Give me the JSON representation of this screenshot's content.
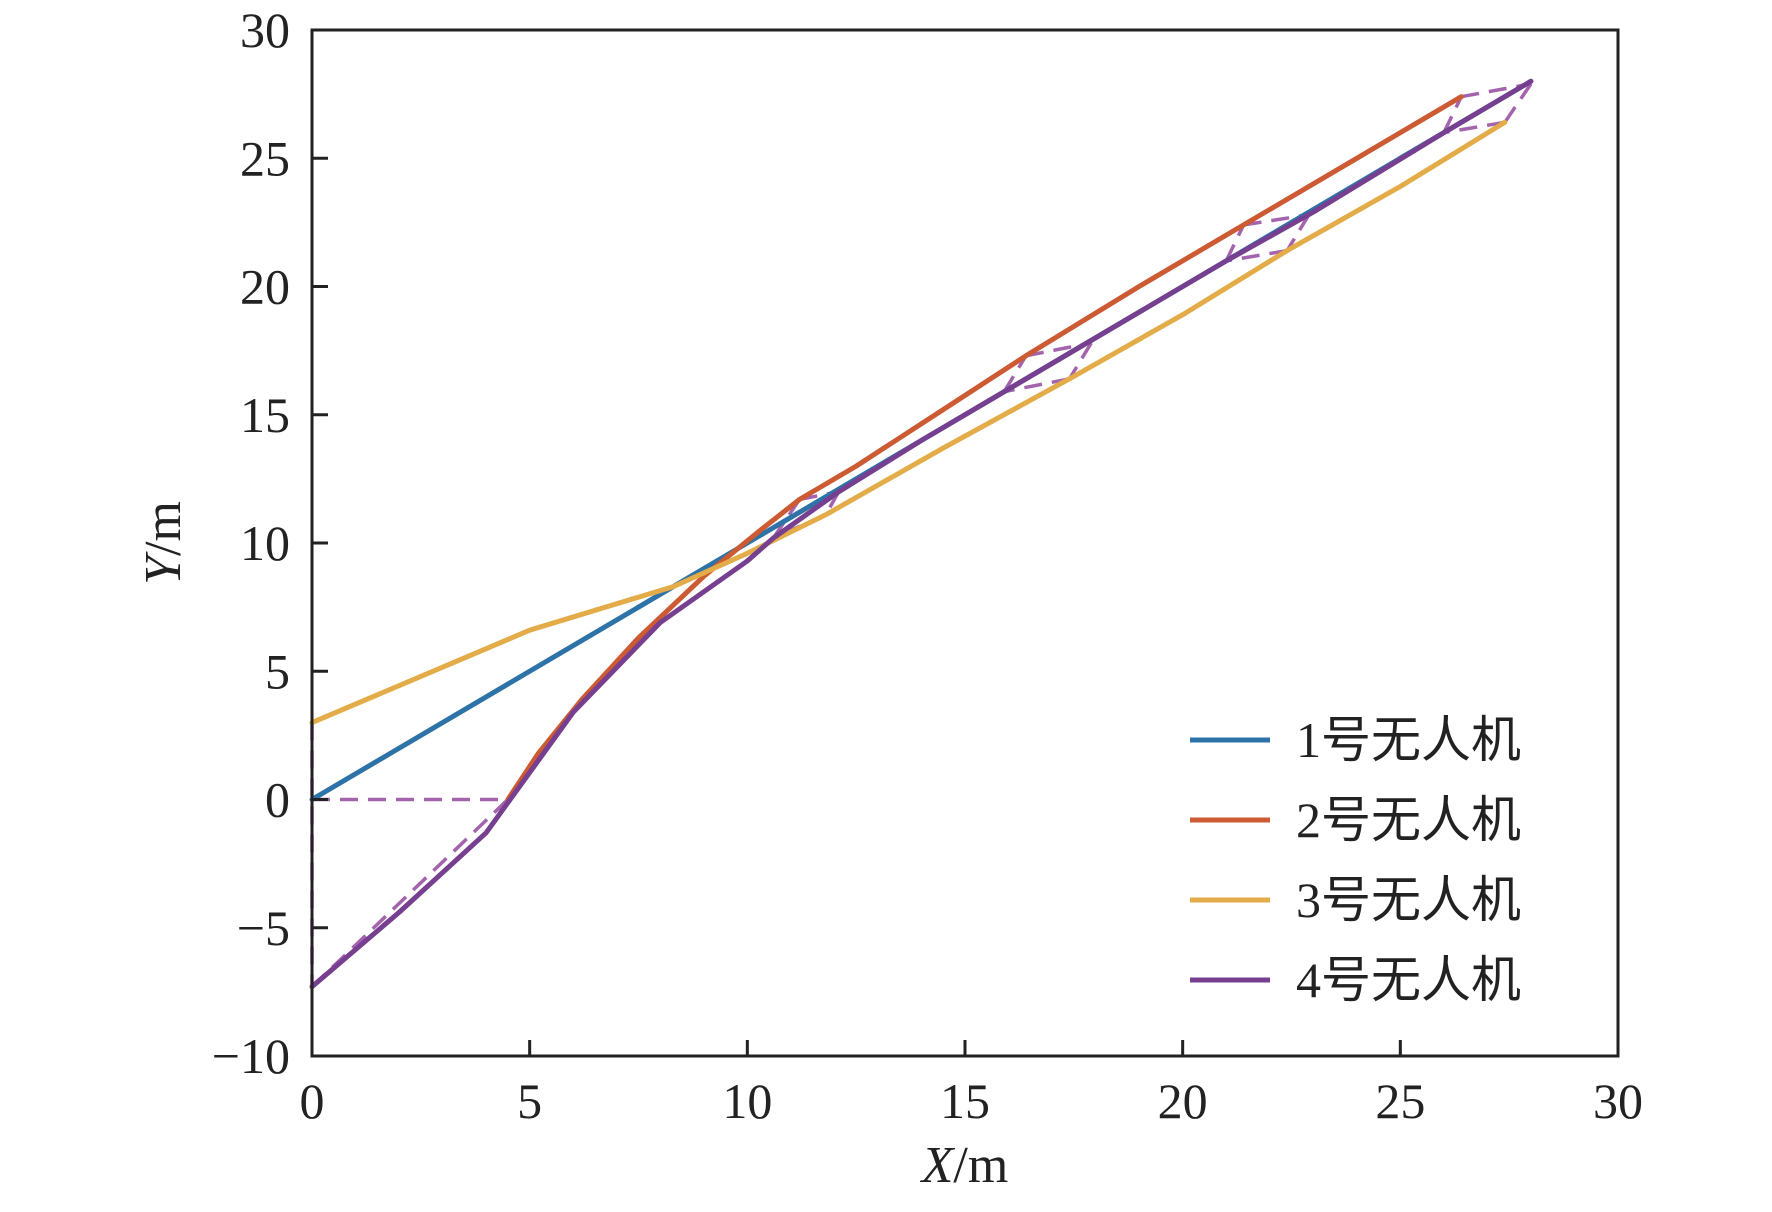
{
  "chart_data": {
    "type": "line",
    "title": "",
    "xlabel": {
      "var": "X",
      "unit": "/m"
    },
    "ylabel": {
      "var": "Y",
      "unit": "/m"
    },
    "xlim": [
      0,
      30
    ],
    "ylim": [
      -10,
      30
    ],
    "xticks": [
      0,
      5,
      10,
      15,
      20,
      25,
      30
    ],
    "yticks": [
      -10,
      -5,
      0,
      5,
      10,
      15,
      20,
      25,
      30
    ],
    "xtick_labels": [
      "0",
      "5",
      "10",
      "15",
      "20",
      "25",
      "30"
    ],
    "ytick_labels": [
      "−10",
      "−5",
      "0",
      "5",
      "10",
      "15",
      "20",
      "25",
      "30"
    ],
    "grid": false,
    "legend_position": "lower-right",
    "series": [
      {
        "name": "1号无人机",
        "color": "#2e73a8",
        "points": [
          [
            0,
            0
          ],
          [
            11.2,
            11.2
          ],
          [
            28,
            28
          ]
        ]
      },
      {
        "name": "2号无人机",
        "color": "#cc5a33",
        "points": [
          [
            4.5,
            0
          ],
          [
            5.2,
            1.8
          ],
          [
            6.2,
            3.9
          ],
          [
            7.5,
            6.3
          ],
          [
            9.0,
            8.7
          ],
          [
            10.3,
            10.5
          ],
          [
            11.2,
            11.7
          ],
          [
            12.5,
            13.0
          ],
          [
            14.5,
            15.2
          ],
          [
            16.4,
            17.3
          ],
          [
            19.0,
            20.0
          ],
          [
            21.4,
            22.4
          ],
          [
            24.0,
            25.0
          ],
          [
            26.4,
            27.4
          ]
        ]
      },
      {
        "name": "3号无人机",
        "color": "#e3ac48",
        "points": [
          [
            0,
            3
          ],
          [
            2.5,
            4.8
          ],
          [
            5,
            6.6
          ],
          [
            8.3,
            8.3
          ],
          [
            10,
            9.6
          ],
          [
            11.8,
            11.1
          ],
          [
            14.5,
            13.7
          ],
          [
            17.4,
            16.4
          ],
          [
            20,
            18.9
          ],
          [
            22.4,
            21.4
          ],
          [
            25,
            23.9
          ],
          [
            27.4,
            26.4
          ]
        ]
      },
      {
        "name": "4号无人机",
        "color": "#763f8f",
        "points": [
          [
            0,
            -7.3
          ],
          [
            2,
            -4.4
          ],
          [
            4,
            -1.3
          ],
          [
            6,
            3.4
          ],
          [
            8,
            6.9
          ],
          [
            10,
            9.3
          ],
          [
            10.6,
            10.2
          ],
          [
            12.1,
            12.0
          ],
          [
            14,
            14.0
          ],
          [
            15.9,
            15.9
          ],
          [
            18,
            18.0
          ],
          [
            21,
            21.0
          ],
          [
            23,
            22.9
          ],
          [
            26,
            26.0
          ],
          [
            28,
            28
          ]
        ]
      }
    ],
    "dashed_connectors": {
      "color": "#a463ad",
      "segments": [
        [
          [
            0,
            3
          ],
          [
            0,
            -7.3
          ]
        ],
        [
          [
            0,
            0
          ],
          [
            4.5,
            0
          ]
        ],
        [
          [
            0,
            -7.3
          ],
          [
            4.5,
            0
          ]
        ],
        [
          [
            10.6,
            10.2
          ],
          [
            11.2,
            11.7
          ]
        ],
        [
          [
            11.2,
            11.7
          ],
          [
            12.1,
            12.0
          ]
        ],
        [
          [
            12.1,
            12.0
          ],
          [
            11.8,
            11.1
          ]
        ],
        [
          [
            11.8,
            11.1
          ],
          [
            10.6,
            10.2
          ]
        ],
        [
          [
            15.9,
            15.9
          ],
          [
            16.4,
            17.3
          ]
        ],
        [
          [
            16.4,
            17.3
          ],
          [
            17.9,
            17.8
          ]
        ],
        [
          [
            17.9,
            17.8
          ],
          [
            17.4,
            16.4
          ]
        ],
        [
          [
            17.4,
            16.4
          ],
          [
            15.9,
            15.9
          ]
        ],
        [
          [
            21.0,
            21.0
          ],
          [
            21.4,
            22.4
          ]
        ],
        [
          [
            21.4,
            22.4
          ],
          [
            22.9,
            22.8
          ]
        ],
        [
          [
            22.9,
            22.8
          ],
          [
            22.4,
            21.4
          ]
        ],
        [
          [
            22.4,
            21.4
          ],
          [
            21.0,
            21.0
          ]
        ],
        [
          [
            26.0,
            26.0
          ],
          [
            26.4,
            27.4
          ]
        ],
        [
          [
            26.4,
            27.4
          ],
          [
            28.0,
            27.9
          ]
        ],
        [
          [
            28.0,
            27.9
          ],
          [
            27.4,
            26.4
          ]
        ],
        [
          [
            27.4,
            26.4
          ],
          [
            26.0,
            26.0
          ]
        ]
      ]
    }
  }
}
